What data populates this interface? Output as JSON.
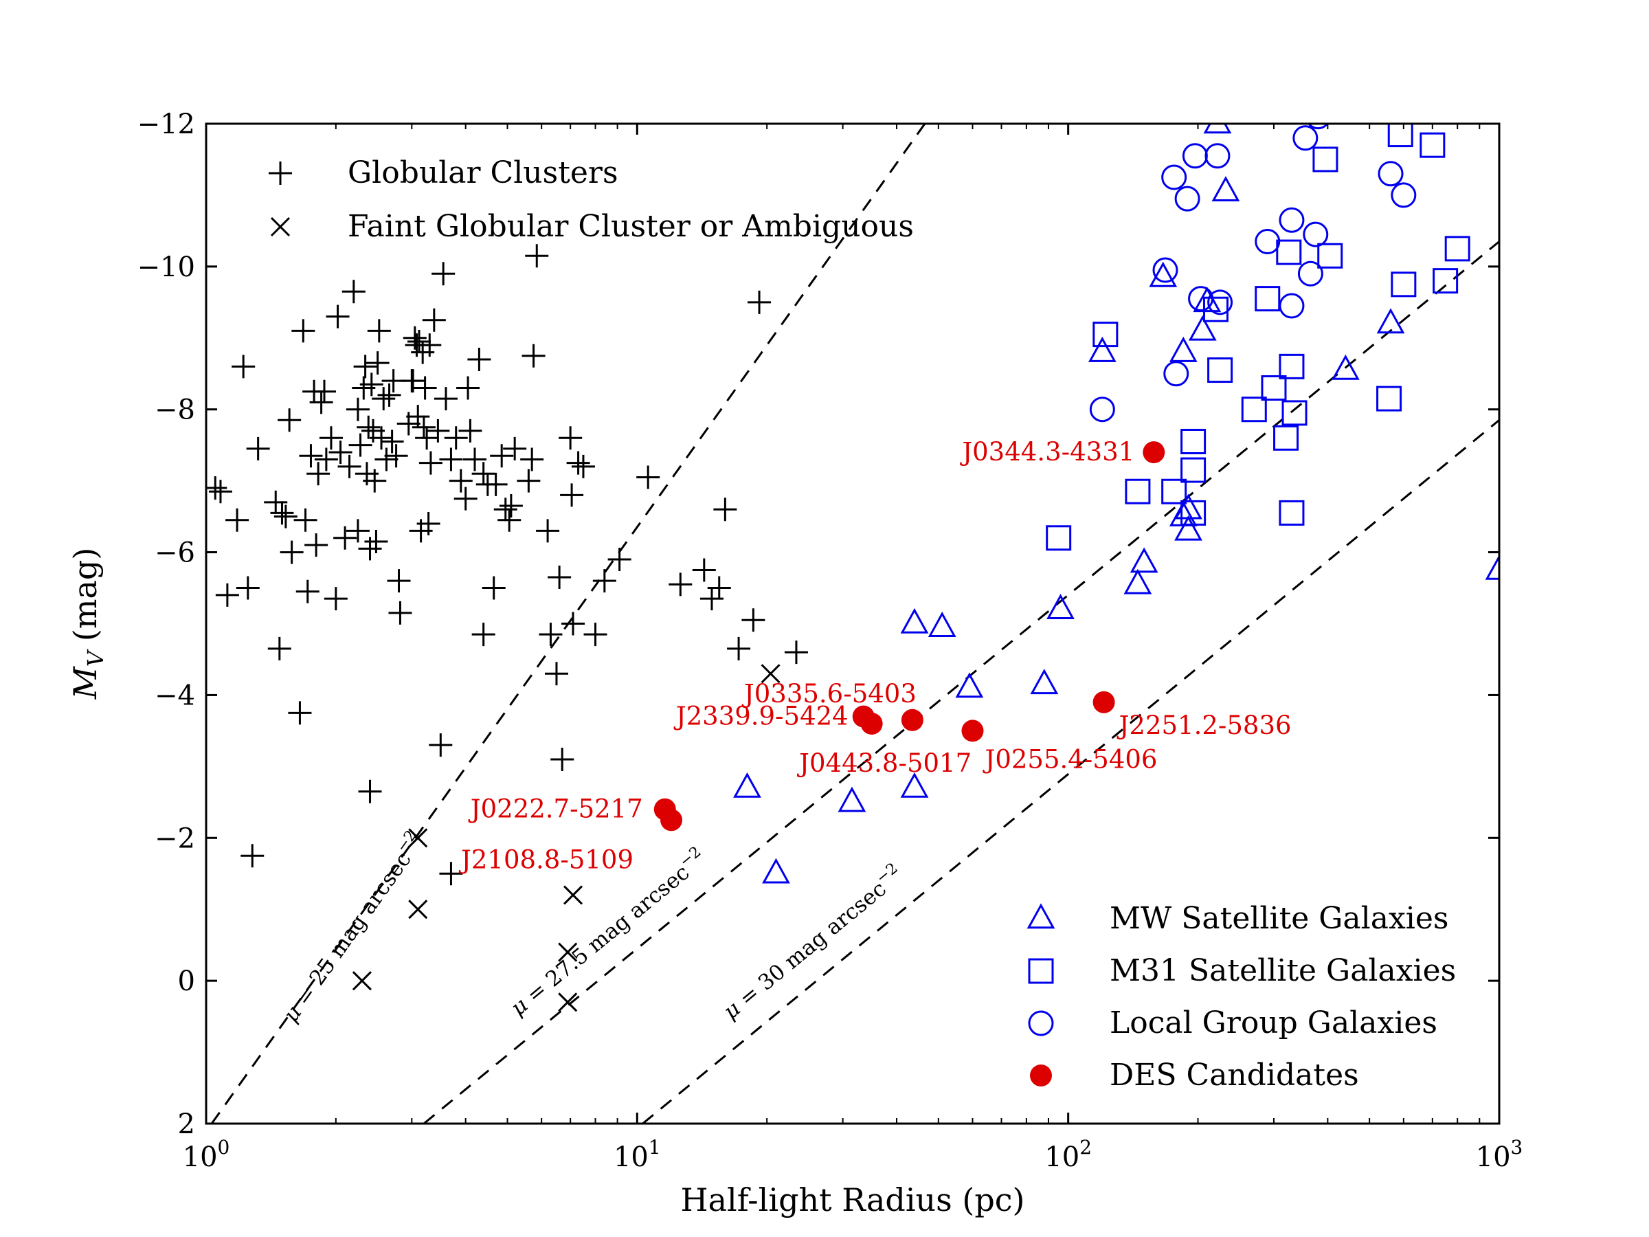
{
  "chart_data": {
    "type": "scatter",
    "xlabel": "Half-light Radius (pc)",
    "ylabel_main": "M",
    "ylabel_sub": "V",
    "ylabel_unit": "(mag)",
    "xscale": "log",
    "xlim": [
      1,
      1000
    ],
    "ylim": [
      2,
      -12
    ],
    "x_ticks": [
      {
        "value": 1,
        "base": "10",
        "exp": "0"
      },
      {
        "value": 10,
        "base": "10",
        "exp": "1"
      },
      {
        "value": 100,
        "base": "10",
        "exp": "2"
      },
      {
        "value": 1000,
        "base": "10",
        "exp": "3"
      }
    ],
    "y_ticks": [
      {
        "value": -12,
        "label": "−12"
      },
      {
        "value": -10,
        "label": "−10"
      },
      {
        "value": -8,
        "label": "−8"
      },
      {
        "value": -6,
        "label": "−6"
      },
      {
        "value": -4,
        "label": "−4"
      },
      {
        "value": -2,
        "label": "−2"
      },
      {
        "value": 0,
        "label": "0"
      },
      {
        "value": 2,
        "label": "2"
      }
    ],
    "grid": false,
    "legend_upper": {
      "placement": "top-left",
      "entries": [
        {
          "marker": "plus",
          "label": "Globular Clusters"
        },
        {
          "marker": "cross",
          "label": "Faint Globular Cluster or Ambiguous"
        }
      ]
    },
    "legend_lower": {
      "placement": "bottom-right",
      "entries": [
        {
          "marker": "triangle",
          "label": "MW Satellite Galaxies"
        },
        {
          "marker": "square",
          "label": "M31 Satellite Galaxies"
        },
        {
          "marker": "circle",
          "label": "Local Group Galaxies"
        },
        {
          "marker": "dot",
          "label": "DES Candidates"
        }
      ]
    },
    "colors": {
      "black": "#000000",
      "blue": "#0000ee",
      "red": "#dd0000"
    },
    "surface_brightness_lines": [
      {
        "mu": 25,
        "label_mu": "μ",
        "label_text": " = 25 mag arcsec",
        "label_exp": "−2",
        "points": [
          [
            1.03,
            2.0
          ],
          [
            46.5,
            -12.0
          ]
        ],
        "label_at": [
          1.6,
          0.6
        ]
      },
      {
        "mu": 27.5,
        "label_mu": "μ",
        "label_text": " = 27.5 mag arcsec",
        "label_exp": "−2",
        "points": [
          [
            3.2,
            2.0
          ],
          [
            1000,
            -10.35
          ]
        ],
        "label_at": [
          5.3,
          0.5
        ]
      },
      {
        "mu": 30,
        "label_mu": "μ",
        "label_text": " = 30 mag arcsec",
        "label_exp": "−2",
        "points": [
          [
            10.3,
            2.0
          ],
          [
            1000,
            -7.85
          ]
        ],
        "label_at": [
          16.5,
          0.55
        ]
      }
    ],
    "series": [
      {
        "name": "Globular Clusters",
        "marker": "plus",
        "color": "#000000",
        "points": [
          [
            1.05,
            -6.9
          ],
          [
            1.08,
            -6.85
          ],
          [
            1.12,
            -5.4
          ],
          [
            1.18,
            -6.45
          ],
          [
            1.22,
            -8.6
          ],
          [
            1.25,
            -5.5
          ],
          [
            1.28,
            -1.75
          ],
          [
            1.32,
            -7.45
          ],
          [
            1.45,
            -6.7
          ],
          [
            1.5,
            -6.55
          ],
          [
            1.48,
            -4.65
          ],
          [
            1.53,
            -6.5
          ],
          [
            1.56,
            -7.85
          ],
          [
            1.58,
            -6.0
          ],
          [
            1.65,
            -3.75
          ],
          [
            1.68,
            -9.1
          ],
          [
            1.7,
            -6.45
          ],
          [
            1.72,
            -5.45
          ],
          [
            1.75,
            -7.35
          ],
          [
            1.78,
            -8.25
          ],
          [
            1.8,
            -6.1
          ],
          [
            1.82,
            -7.1
          ],
          [
            1.85,
            -8.1
          ],
          [
            1.88,
            -8.25
          ],
          [
            1.9,
            -7.3
          ],
          [
            1.95,
            -7.6
          ],
          [
            2.0,
            -5.35
          ],
          [
            2.02,
            -9.3
          ],
          [
            2.05,
            -7.4
          ],
          [
            2.15,
            -7.2
          ],
          [
            2.2,
            -9.65
          ],
          [
            2.25,
            -8.0
          ],
          [
            2.28,
            -7.5
          ],
          [
            2.32,
            -8.3
          ],
          [
            2.34,
            -8.6
          ],
          [
            2.36,
            -7.1
          ],
          [
            2.38,
            -7.75
          ],
          [
            2.4,
            -6.05
          ],
          [
            2.42,
            -8.35
          ],
          [
            2.44,
            -7.7
          ],
          [
            2.46,
            -7.0
          ],
          [
            2.48,
            -6.15
          ],
          [
            2.5,
            -8.65
          ],
          [
            2.52,
            -9.1
          ],
          [
            2.55,
            -7.6
          ],
          [
            2.58,
            -8.15
          ],
          [
            2.62,
            -7.3
          ],
          [
            2.66,
            -8.2
          ],
          [
            2.7,
            -7.55
          ],
          [
            2.72,
            -8.4
          ],
          [
            2.76,
            -7.35
          ],
          [
            2.8,
            -5.6
          ],
          [
            2.82,
            -5.15
          ],
          [
            2.95,
            -7.8
          ],
          [
            3.0,
            -8.4
          ],
          [
            3.02,
            -8.4
          ],
          [
            3.05,
            -9.0
          ],
          [
            3.08,
            -8.9
          ],
          [
            3.1,
            -7.9
          ],
          [
            3.12,
            -8.95
          ],
          [
            3.15,
            -6.3
          ],
          [
            3.18,
            -8.8
          ],
          [
            3.2,
            -7.75
          ],
          [
            3.22,
            -8.3
          ],
          [
            3.25,
            -7.6
          ],
          [
            3.28,
            -6.4
          ],
          [
            3.3,
            -8.9
          ],
          [
            3.32,
            -7.25
          ],
          [
            3.38,
            -9.25
          ],
          [
            3.45,
            -7.7
          ],
          [
            3.55,
            -9.9
          ],
          [
            3.6,
            -8.15
          ],
          [
            3.7,
            -7.3
          ],
          [
            3.8,
            -7.6
          ],
          [
            3.9,
            -7.0
          ],
          [
            4.0,
            -6.75
          ],
          [
            4.05,
            -8.3
          ],
          [
            4.1,
            -7.7
          ],
          [
            4.2,
            -7.3
          ],
          [
            4.3,
            -8.7
          ],
          [
            4.4,
            -7.1
          ],
          [
            4.5,
            -6.95
          ],
          [
            4.65,
            -5.5
          ],
          [
            4.7,
            -6.95
          ],
          [
            4.85,
            -7.35
          ],
          [
            4.95,
            -6.6
          ],
          [
            5.05,
            -6.45
          ],
          [
            5.1,
            -6.65
          ],
          [
            5.2,
            -7.45
          ],
          [
            5.6,
            -7.0
          ],
          [
            5.7,
            -7.3
          ],
          [
            5.75,
            -8.75
          ],
          [
            5.85,
            -10.15
          ],
          [
            6.2,
            -6.3
          ],
          [
            6.6,
            -5.65
          ],
          [
            7.0,
            -7.6
          ],
          [
            7.05,
            -6.8
          ],
          [
            7.3,
            -7.25
          ],
          [
            7.5,
            -7.2
          ],
          [
            8.4,
            -5.6
          ],
          [
            9.1,
            -5.9
          ],
          [
            10.6,
            -7.05
          ],
          [
            12.6,
            -5.55
          ],
          [
            14.3,
            -5.75
          ],
          [
            14.9,
            -5.35
          ],
          [
            15.5,
            -5.5
          ],
          [
            16.0,
            -6.6
          ],
          [
            17.2,
            -4.65
          ],
          [
            18.6,
            -5.05
          ],
          [
            19.2,
            -9.5
          ],
          [
            23.4,
            -4.6
          ],
          [
            4.4,
            -4.85
          ],
          [
            3.5,
            -3.3
          ],
          [
            6.7,
            -3.1
          ],
          [
            8.0,
            -4.85
          ],
          [
            6.5,
            -4.3
          ],
          [
            6.3,
            -4.85
          ],
          [
            7.1,
            -5.0
          ],
          [
            2.4,
            -2.65
          ],
          [
            3.7,
            -1.5
          ],
          [
            2.1,
            -6.2
          ],
          [
            2.25,
            -6.3
          ]
        ]
      },
      {
        "name": "Faint Globular Cluster or Ambiguous",
        "marker": "cross",
        "color": "#000000",
        "points": [
          [
            20.4,
            -4.3
          ],
          [
            3.1,
            -2.0
          ],
          [
            3.1,
            -1.0
          ],
          [
            7.1,
            -1.2
          ],
          [
            6.9,
            -0.4
          ],
          [
            2.3,
            0.0
          ],
          [
            6.9,
            0.3
          ]
        ]
      },
      {
        "name": "MW Satellite Galaxies",
        "marker": "triangle",
        "color": "#0000ee",
        "points": [
          [
            222,
            -12.0
          ],
          [
            232,
            -11.05
          ],
          [
            166,
            -9.85
          ],
          [
            120,
            -8.8
          ],
          [
            185,
            -8.8
          ],
          [
            205,
            -9.1
          ],
          [
            210,
            -9.5
          ],
          [
            560,
            -9.2
          ],
          [
            440,
            -8.55
          ],
          [
            190,
            -6.6
          ],
          [
            185,
            -6.5
          ],
          [
            190,
            -6.3
          ],
          [
            96,
            -5.2
          ],
          [
            150,
            -5.85
          ],
          [
            145,
            -5.55
          ],
          [
            1000,
            -5.75
          ],
          [
            44,
            -5.0
          ],
          [
            51,
            -4.95
          ],
          [
            59,
            -4.1
          ],
          [
            88,
            -4.15
          ],
          [
            18,
            -2.7
          ],
          [
            31.5,
            -2.5
          ],
          [
            44,
            -2.7
          ],
          [
            21,
            -1.5
          ]
        ]
      },
      {
        "name": "M31 Satellite Galaxies",
        "marker": "square",
        "color": "#0000ee",
        "points": [
          [
            590,
            -11.85
          ],
          [
            700,
            -11.7
          ],
          [
            395,
            -11.5
          ],
          [
            800,
            -10.25
          ],
          [
            325,
            -10.2
          ],
          [
            405,
            -10.15
          ],
          [
            600,
            -9.75
          ],
          [
            750,
            -9.8
          ],
          [
            290,
            -9.55
          ],
          [
            220,
            -9.4
          ],
          [
            122,
            -9.05
          ],
          [
            225,
            -8.55
          ],
          [
            330,
            -8.6
          ],
          [
            300,
            -8.3
          ],
          [
            270,
            -8.0
          ],
          [
            320,
            -7.6
          ],
          [
            335,
            -7.95
          ],
          [
            555,
            -8.15
          ],
          [
            195,
            -7.55
          ],
          [
            195,
            -7.15
          ],
          [
            176,
            -6.85
          ],
          [
            145,
            -6.85
          ],
          [
            195,
            -6.55
          ],
          [
            330,
            -6.55
          ],
          [
            95,
            -6.2
          ]
        ]
      },
      {
        "name": "Local Group Galaxies",
        "marker": "circle",
        "color": "#0000ee",
        "points": [
          [
            380,
            -12.1
          ],
          [
            355,
            -11.8
          ],
          [
            197,
            -11.55
          ],
          [
            222,
            -11.55
          ],
          [
            176,
            -11.25
          ],
          [
            189,
            -10.95
          ],
          [
            560,
            -11.3
          ],
          [
            600,
            -11.0
          ],
          [
            330,
            -10.65
          ],
          [
            290,
            -10.35
          ],
          [
            375,
            -10.45
          ],
          [
            365,
            -9.9
          ],
          [
            168,
            -9.95
          ],
          [
            203,
            -9.55
          ],
          [
            225,
            -9.5
          ],
          [
            330,
            -9.45
          ],
          [
            178,
            -8.5
          ],
          [
            120,
            -8.0
          ]
        ]
      },
      {
        "name": "DES Candidates",
        "marker": "dot",
        "color": "#dd0000",
        "points": [
          {
            "x": 11.6,
            "y": -2.4,
            "label": "J0222.7-5217"
          },
          {
            "x": 12.0,
            "y": -2.25,
            "label": "J2108.8-5109"
          },
          {
            "x": 33.5,
            "y": -3.7,
            "label": "J2339.9-5424"
          },
          {
            "x": 35.0,
            "y": -3.6,
            "label": "J0443.8-5017"
          },
          {
            "x": 43.5,
            "y": -3.65,
            "label": "J0335.6-5403"
          },
          {
            "x": 60.0,
            "y": -3.5,
            "label": "J0255.4-5406"
          },
          {
            "x": 121.0,
            "y": -3.9,
            "label": "J2251.2-5836"
          },
          {
            "x": 158.0,
            "y": -7.4,
            "label": "J0344.3-4331"
          }
        ]
      }
    ]
  }
}
